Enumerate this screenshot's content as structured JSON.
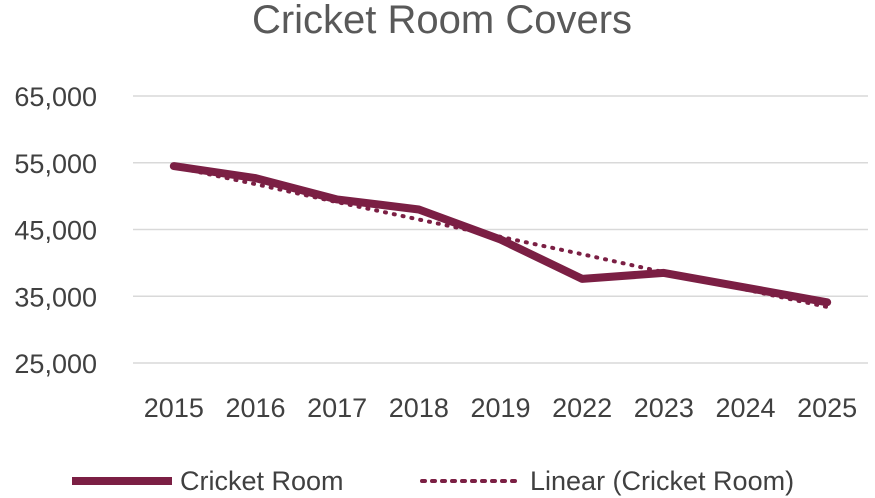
{
  "chart_data": {
    "type": "line",
    "title": "Cricket Room Covers",
    "xlabel": "",
    "ylabel": "",
    "categories": [
      "2015",
      "2016",
      "2017",
      "2018",
      "2019",
      "2022",
      "2023",
      "2024",
      "2025"
    ],
    "series": [
      {
        "name": "Cricket Room",
        "values": [
          54500,
          52700,
          49500,
          48000,
          43500,
          37600,
          38500,
          36300,
          34100
        ],
        "color": "#7b1f44",
        "style": "solid"
      },
      {
        "name": "Linear (Cricket Room)",
        "values": [
          54400,
          51800,
          49100,
          46500,
          43900,
          41300,
          38600,
          36000,
          33400
        ],
        "color": "#7b1f44",
        "style": "dotted"
      }
    ],
    "ylim": [
      25000,
      65000
    ],
    "yticks": [
      25000,
      35000,
      45000,
      55000,
      65000
    ],
    "ytick_labels": [
      "25,000",
      "35,000",
      "45,000",
      "55,000",
      "65,000"
    ],
    "grid": true,
    "legend_position": "bottom"
  }
}
